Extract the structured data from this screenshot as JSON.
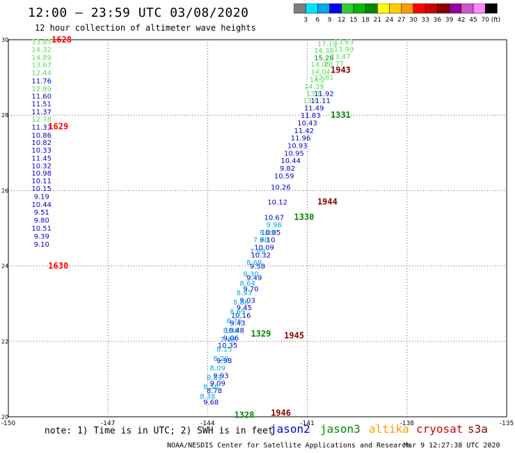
{
  "header": {
    "title": "12:00 – 23:59 UTC 03/08/2020",
    "subtitle": "12 hour collection of altimeter wave heights"
  },
  "colorbar": {
    "labels": [
      "3",
      "6",
      "9",
      "12",
      "15",
      "18",
      "21",
      "24",
      "27",
      "30",
      "33",
      "36",
      "39",
      "42",
      "45",
      "70"
    ],
    "unit_label": "(ft)",
    "colors": [
      "#7f7f7f",
      "#00e5ff",
      "#00a8e8",
      "#0000ff",
      "#33cc33",
      "#00b800",
      "#008800",
      "#ffff00",
      "#ffcc00",
      "#ff9900",
      "#ff0000",
      "#cc0000",
      "#880000",
      "#990099",
      "#cc55cc",
      "#ff88ff",
      "#000000"
    ]
  },
  "footer": {
    "note": "note: 1) Time is in UTC; 2) SWH is in feet",
    "missions": [
      {
        "name": "jason2",
        "color": "#0000cc"
      },
      {
        "name": "jason3",
        "color": "#008800"
      },
      {
        "name": "altika",
        "color": "#ff9900"
      },
      {
        "name": "cryosat",
        "color": "#cc0000"
      },
      {
        "name": "s3a",
        "color": "#880000"
      }
    ],
    "org": "NOAA/NESDIS Center for Satellite Applications and Research",
    "timestamp": "Mar  9 12:27:38 UTC 2020"
  },
  "chart_data": {
    "type": "scatter",
    "title": "12 hour collection of altimeter wave heights",
    "xlim": [
      -150,
      -135
    ],
    "ylim": [
      20,
      30
    ],
    "x_ticks": [
      "-150",
      "-147",
      "-144",
      "-141",
      "-138",
      "-135"
    ],
    "y_ticks": [
      "30",
      "28",
      "26",
      "24",
      "22",
      "20"
    ],
    "grid": true,
    "series": [
      {
        "name": "track-west-jason2",
        "color": "#0000cc",
        "x": [
          -149.0,
          -149.0,
          -149.0,
          -149.0,
          -149.0,
          -149.0,
          -149.0,
          -149.0,
          -149.0,
          -149.0,
          -149.0,
          -149.0,
          -149.0,
          -149.0,
          -149.0,
          -149.0,
          -149.0,
          -149.0,
          -149.0,
          -149.0,
          -149.0,
          -149.0,
          -149.0,
          -149.0
        ],
        "y": [
          29.95,
          29.75,
          29.54,
          29.34,
          29.13,
          28.92,
          28.71,
          28.51,
          28.31,
          28.1,
          27.9,
          27.69,
          27.48,
          27.28,
          27.08,
          26.87,
          26.66,
          26.47,
          26.27,
          26.06,
          25.85,
          25.64,
          25.43,
          25.22
        ],
        "labels": [
          "13.85",
          "14.32",
          "14.89",
          "13.67",
          "12.44",
          "11.76",
          "12.89",
          "11.60",
          "11.51",
          "11.37",
          "12.78",
          "11.33",
          "10.86",
          "10.82",
          "10.33",
          "11.45",
          "10.32",
          "10.98",
          "10.11",
          "10.15",
          "9.19",
          "10.44",
          "9.51",
          "9.80"
        ],
        "label_colors": [
          "#55dd55",
          "#55dd55",
          "#55dd55",
          "#55dd55",
          "#55dd55",
          "#0000cc",
          "#55dd55",
          "#0000cc",
          "#0000cc",
          "#0000cc",
          "#55dd55",
          "#0000cc",
          "#0000cc",
          "#0000cc",
          "#0000cc",
          "#0000cc",
          "#0000cc",
          "#0000cc",
          "#0000cc",
          "#0000cc",
          "#0000cc",
          "#0000cc",
          "#0000cc",
          "#0000cc"
        ]
      },
      {
        "name": "track-west-tail",
        "color": "#0000cc",
        "x": [
          -149.0,
          -149.0,
          -149.0
        ],
        "y": [
          25.01,
          24.8,
          24.58
        ],
        "labels": [
          "10.51",
          "9.39",
          "9.10"
        ],
        "label_colors": [
          "#0000cc",
          "#0000cc",
          "#0000cc"
        ]
      },
      {
        "name": "track-north-green",
        "color": "#55dd55",
        "x": [
          -140.4,
          -139.9,
          -140.5,
          -139.9,
          -140.5,
          -140.0,
          -140.6,
          -140.2,
          -140.6,
          -140.5,
          -140.7,
          -140.8,
          -140.8,
          -140.5,
          -140.9,
          -140.6
        ],
        "y": [
          29.9,
          29.95,
          29.72,
          29.76,
          29.53,
          29.57,
          29.35,
          29.37,
          29.16,
          29.01,
          28.95,
          28.77,
          28.58,
          28.58,
          28.39,
          28.39
        ],
        "labels": [
          "17.19",
          "13.63",
          "14.38",
          "13.99",
          "15.28",
          "13.47",
          "14.05",
          "13.77",
          "14.04",
          "12.81",
          "14.2",
          "14.39",
          "13.8",
          "11.92",
          "13.6",
          "11.11"
        ],
        "label_colors": [
          "#55dd55",
          "#55dd55",
          "#55dd55",
          "#55dd55",
          "#008800",
          "#55dd55",
          "#55dd55",
          "#55dd55",
          "#55dd55",
          "#55dd55",
          "#55dd55",
          "#55dd55",
          "#55dd55",
          "#0000cc",
          "#55dd55",
          "#0000cc"
        ]
      },
      {
        "name": "track-east-descending",
        "color": "#0000cc",
        "x": [
          -140.8,
          -140.9,
          -141.0,
          -141.1,
          -141.2,
          -141.3,
          -141.4,
          -141.5,
          -141.6,
          -141.7,
          -141.8,
          -141.9,
          -142.0,
          -142.1,
          -142.2,
          -142.3,
          -142.4,
          -142.5,
          -142.6,
          -142.7,
          -142.8,
          -142.9,
          -143.0,
          -143.1,
          -143.2,
          -143.3,
          -143.4,
          -143.5,
          -143.6,
          -143.7,
          -143.8,
          -143.9
        ],
        "y": [
          28.2,
          28.0,
          27.8,
          27.6,
          27.4,
          27.2,
          27.0,
          26.8,
          26.6,
          26.4,
          26.1,
          25.7,
          25.3,
          24.9,
          24.7,
          24.5,
          24.3,
          24.0,
          23.7,
          23.4,
          23.1,
          22.9,
          22.7,
          22.5,
          22.3,
          22.1,
          21.9,
          21.5,
          21.1,
          20.9,
          20.7,
          20.4
        ],
        "labels": [
          "11.49",
          "11.83",
          "10.43",
          "11.42",
          "11.96",
          "10.93",
          "10.95",
          "10.44",
          "9.82",
          "10.59",
          "10.26",
          "10.12",
          "10.67",
          "10.05",
          "9.10",
          "10.09",
          "10.32",
          "9.58",
          "9.49",
          "9.70",
          "9.03",
          "9.45",
          "10.16",
          "9.43",
          "10.48",
          "9.06",
          "10.35",
          "9.98",
          "9.93",
          "9.09",
          "8.78",
          "9.68"
        ],
        "label_colors": [
          "#0000cc",
          "#0000cc",
          "#0000cc",
          "#0000cc",
          "#0000cc",
          "#0000cc",
          "#0000cc",
          "#0000cc",
          "#0000cc",
          "#0000cc",
          "#0000cc",
          "#0000cc",
          "#0000cc",
          "#0000cc",
          "#0000cc",
          "#0000cc",
          "#0000cc",
          "#0000cc",
          "#0000cc",
          "#0000cc",
          "#0000cc",
          "#0000cc",
          "#0000cc",
          "#0000cc",
          "#0000cc",
          "#0000cc",
          "#0000cc",
          "#0000cc",
          "#0000cc",
          "#0000cc",
          "#0000cc",
          "#0000cc"
        ]
      },
      {
        "name": "track-east-cyan",
        "color": "#00a8e8",
        "x": [
          -142.0,
          -142.2,
          -142.4,
          -142.5,
          -142.6,
          -142.7,
          -142.8,
          -142.9,
          -143.0,
          -143.1,
          -143.2,
          -143.3,
          -143.4,
          -143.5,
          -143.6,
          -143.7,
          -143.8,
          -143.9,
          -144.0
        ],
        "y": [
          25.1,
          24.9,
          24.7,
          24.4,
          24.1,
          23.8,
          23.55,
          23.3,
          23.05,
          22.8,
          22.55,
          22.3,
          22.05,
          21.8,
          21.55,
          21.3,
          21.05,
          20.8,
          20.55
        ],
        "labels": [
          "9.96",
          "8.09",
          "7.60",
          "7.89",
          "8.69",
          "8.30",
          "8.64",
          "8.93",
          "8.88",
          "8.69",
          "8.76",
          "8.98",
          "7.40",
          "8.15",
          "8.20",
          "8.09",
          "8.81",
          "8.56",
          "8.38"
        ],
        "label_colors": [
          "#00a8e8",
          "#00a8e8",
          "#00a8e8",
          "#00a8e8",
          "#00a8e8",
          "#00a8e8",
          "#00a8e8",
          "#00a8e8",
          "#00a8e8",
          "#00a8e8",
          "#00a8e8",
          "#00a8e8",
          "#00a8e8",
          "#00a8e8",
          "#00a8e8",
          "#00a8e8",
          "#00a8e8",
          "#00a8e8",
          "#00a8e8"
        ]
      }
    ],
    "annotations": [
      {
        "text": "1628",
        "x": -148.7,
        "y": 30.0,
        "color": "#ff0000"
      },
      {
        "text": "1629",
        "x": -148.8,
        "y": 27.7,
        "color": "#ff0000"
      },
      {
        "text": "1630",
        "x": -148.8,
        "y": 24.0,
        "color": "#ff0000"
      },
      {
        "text": "1943",
        "x": -140.3,
        "y": 29.2,
        "color": "#880000"
      },
      {
        "text": "1944",
        "x": -140.7,
        "y": 25.7,
        "color": "#880000"
      },
      {
        "text": "1945",
        "x": -141.7,
        "y": 22.15,
        "color": "#880000"
      },
      {
        "text": "1946",
        "x": -142.1,
        "y": 20.1,
        "color": "#880000"
      },
      {
        "text": "1331",
        "x": -140.3,
        "y": 28.0,
        "color": "#008800"
      },
      {
        "text": "1330",
        "x": -141.4,
        "y": 25.3,
        "color": "#008800"
      },
      {
        "text": "1329",
        "x": -142.7,
        "y": 22.2,
        "color": "#008800"
      },
      {
        "text": "1328",
        "x": -143.2,
        "y": 20.05,
        "color": "#008800"
      }
    ]
  }
}
